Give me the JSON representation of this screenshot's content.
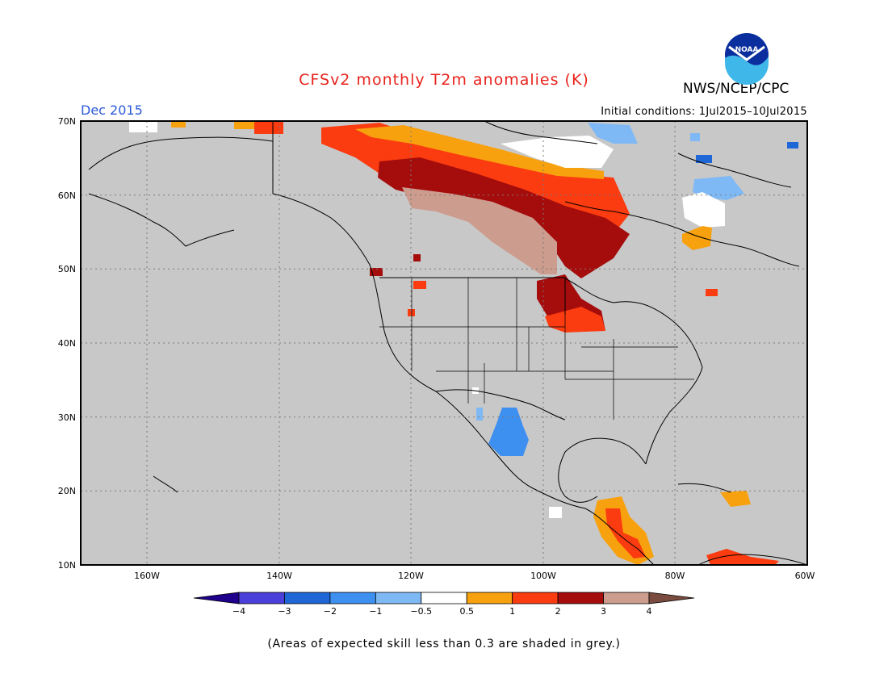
{
  "title": "CFSv2 monthly T2m anomalies (K)",
  "agency": "NWS/NCEP/CPC",
  "logo_text": "NOAA",
  "period": "Dec 2015",
  "initial_conditions": "Initial conditions: 1Jul2015–10Jul2015",
  "footnote": "(Areas of expected skill less than 0.3 are shaded in grey.)",
  "map": {
    "lon_range": [
      -172,
      -60
    ],
    "lat_range": [
      10,
      70
    ],
    "lat_labels": [
      "70N",
      "60N",
      "50N",
      "40N",
      "30N",
      "20N",
      "10N"
    ],
    "lon_labels": [
      "160W",
      "140W",
      "120W",
      "100W",
      "80W",
      "60W"
    ],
    "background_color": "#c8c8c8"
  },
  "legend": {
    "colors": [
      "#1f008c",
      "#4a3fd8",
      "#1f66d6",
      "#3d8ff0",
      "#7fb9f5",
      "#ffffff",
      "#f8a10e",
      "#fb3b10",
      "#a50c0c",
      "#cc9c8e",
      "#7a4c3f"
    ],
    "tick_labels": [
      "−4",
      "−3",
      "−2",
      "−1",
      "−0.5",
      "0.5",
      "1",
      "2",
      "3",
      "4"
    ]
  }
}
